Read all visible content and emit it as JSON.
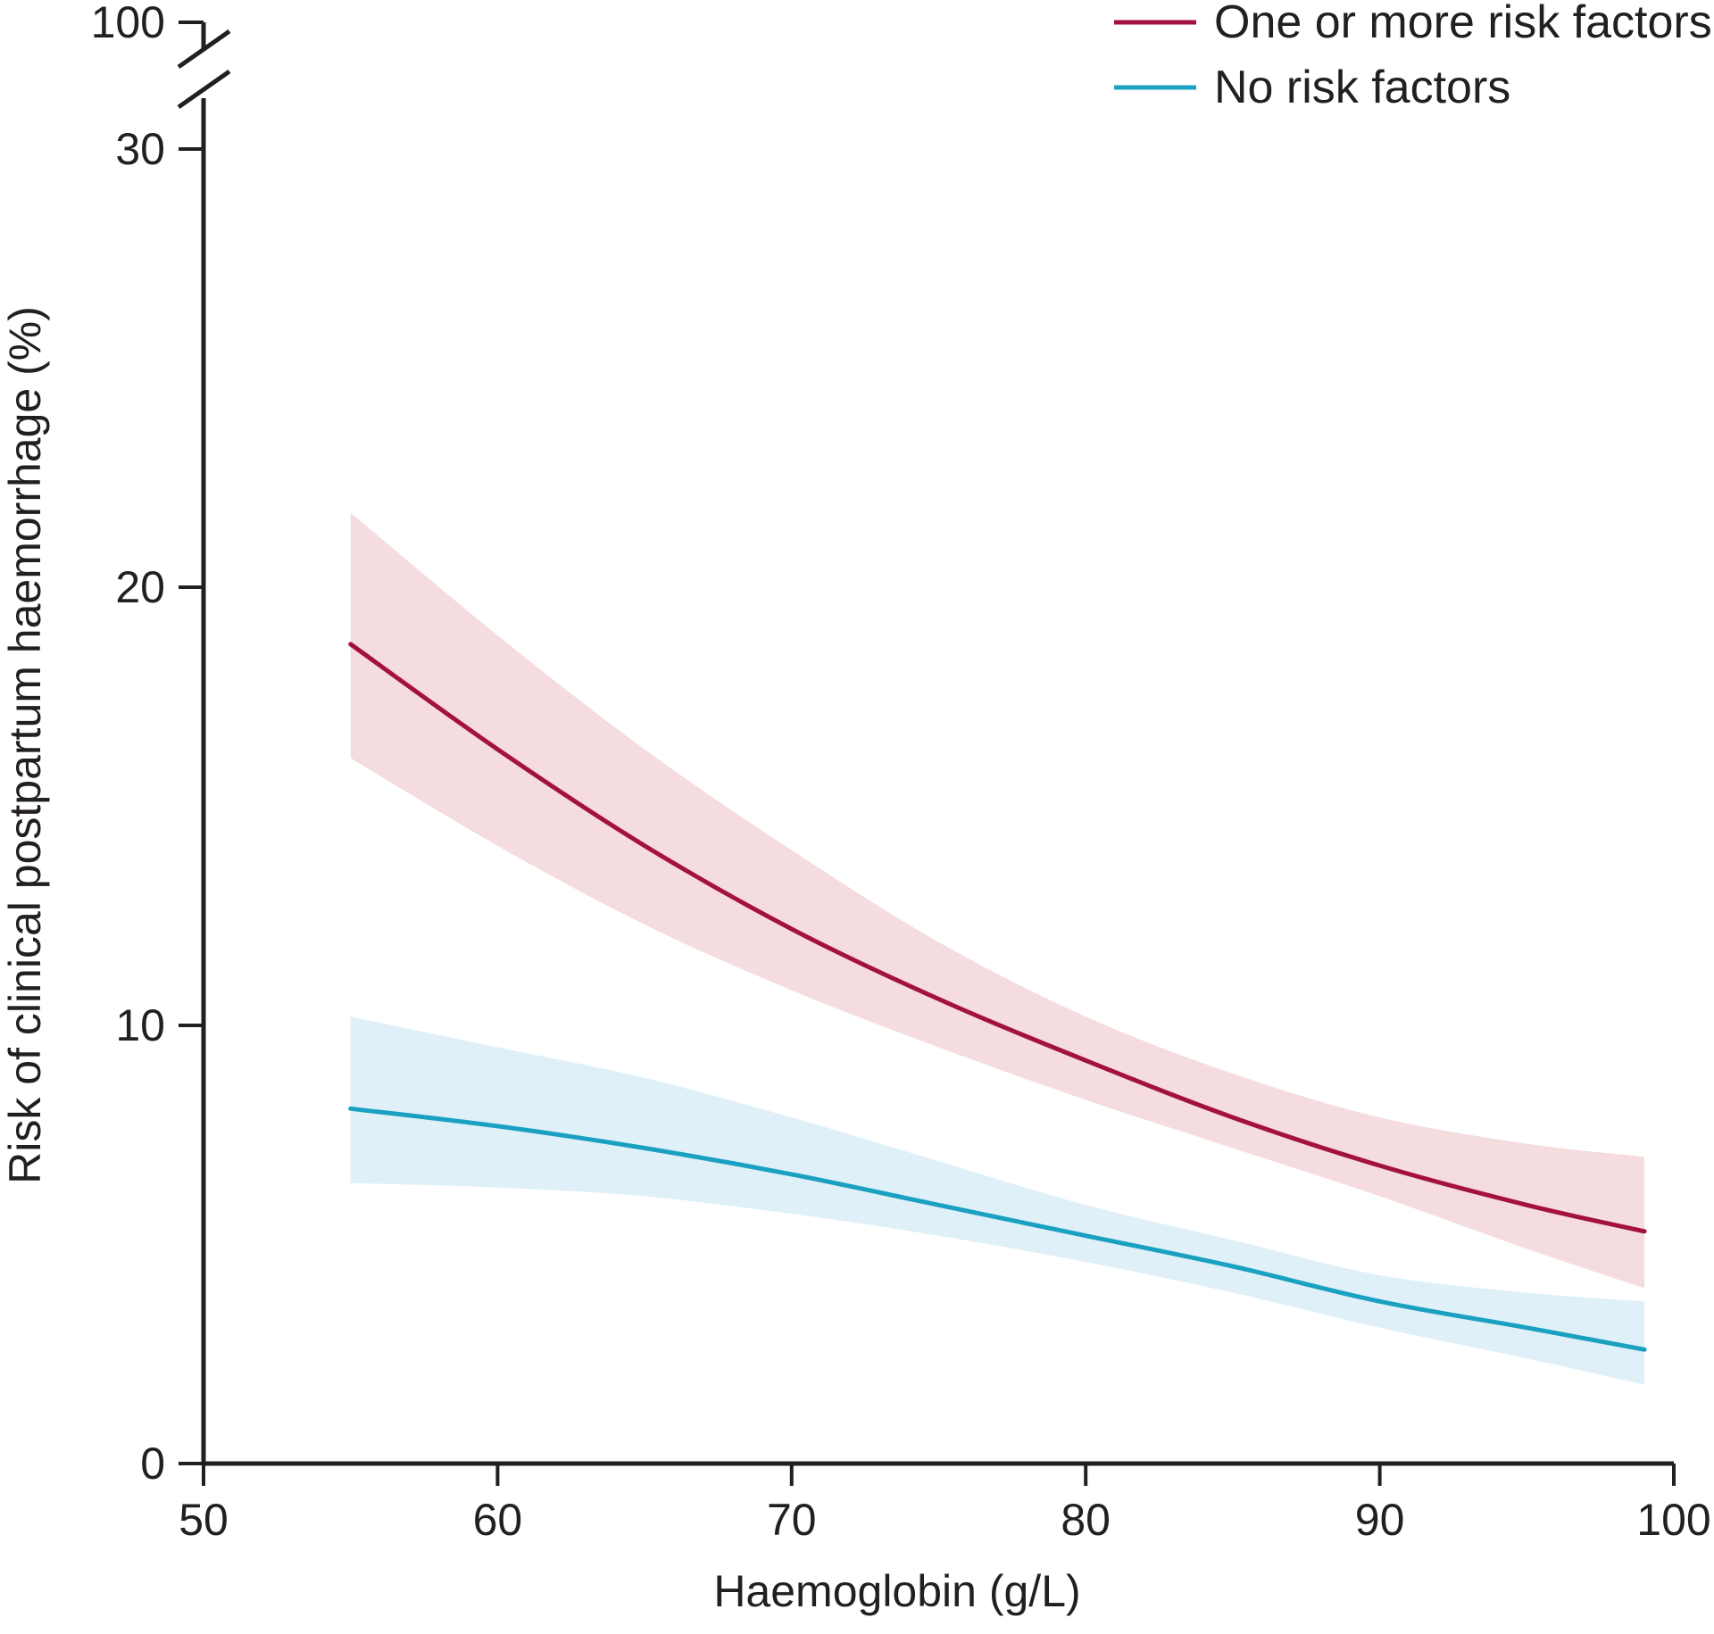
{
  "chart_data": {
    "type": "line",
    "xlabel": "Haemoglobin (g/L)",
    "ylabel": "Risk of clinical postpartum haemorrhage (%)",
    "xlim": [
      50,
      100
    ],
    "ylim": [
      0,
      30
    ],
    "axis_break": true,
    "y_break_label": "100",
    "x_ticks": [
      "50",
      "60",
      "70",
      "80",
      "90",
      "100"
    ],
    "y_ticks": [
      "0",
      "10",
      "20",
      "30"
    ],
    "legend_position": "top-right",
    "series": [
      {
        "name": "One or more risk factors",
        "color": "#a3123f",
        "band_color": "#f5dcdf",
        "x": [
          55,
          60,
          65,
          70,
          75,
          80,
          85,
          90,
          95,
          99
        ],
        "y": [
          18.7,
          16.3,
          14.1,
          12.2,
          10.6,
          9.2,
          7.9,
          6.8,
          5.9,
          5.3
        ],
        "lower": [
          16.1,
          14.1,
          12.3,
          10.8,
          9.5,
          8.3,
          7.2,
          6.1,
          4.9,
          4.0
        ],
        "upper": [
          21.7,
          18.9,
          16.3,
          14.0,
          11.9,
          10.2,
          8.9,
          7.9,
          7.3,
          7.0
        ]
      },
      {
        "name": "No risk factors",
        "color": "#1aa0c0",
        "band_color": "#dff0f8",
        "x": [
          55,
          60,
          65,
          70,
          75,
          80,
          85,
          90,
          95,
          99
        ],
        "y": [
          8.1,
          7.7,
          7.2,
          6.6,
          5.9,
          5.2,
          4.5,
          3.7,
          3.1,
          2.6
        ],
        "lower": [
          6.4,
          6.3,
          6.1,
          5.7,
          5.2,
          4.6,
          3.9,
          3.1,
          2.4,
          1.8
        ],
        "upper": [
          10.2,
          9.5,
          8.8,
          7.9,
          6.9,
          5.9,
          5.1,
          4.3,
          3.9,
          3.7
        ]
      }
    ]
  }
}
